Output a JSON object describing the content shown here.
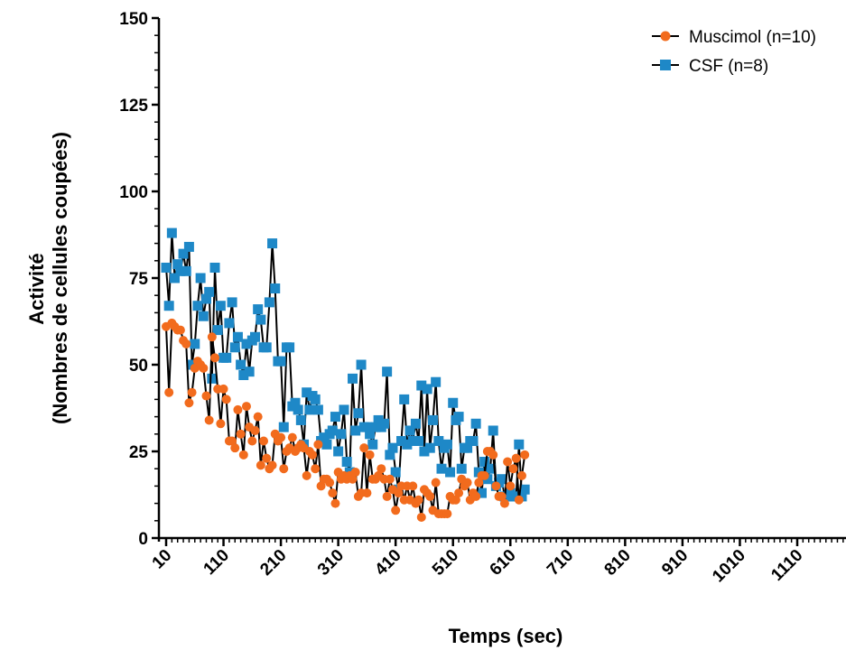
{
  "chart_data": {
    "type": "line",
    "xlabel": "Temps (sec)",
    "ylabel_line1": "Activité",
    "ylabel_line2": "(Nombres de cellules coupées)",
    "xlim": [
      5,
      1195
    ],
    "ylim": [
      0,
      150
    ],
    "x_ticks": [
      "10",
      "110",
      "210",
      "310",
      "410",
      "510",
      "610",
      "710",
      "810",
      "910",
      "1010",
      "1110"
    ],
    "y_ticks": [
      "0",
      "25",
      "50",
      "75",
      "100",
      "125",
      "150"
    ],
    "grid": false,
    "legend_position": "top-right",
    "x_start": 10,
    "x_step": 5,
    "series": [
      {
        "name": "Muscimol (n=10)",
        "color": "#F26B1D",
        "marker": "circle",
        "values": [
          61,
          42,
          62,
          61,
          60,
          60,
          57,
          56,
          39,
          42,
          49,
          51,
          50,
          49,
          41,
          34,
          58,
          52,
          43,
          33,
          43,
          40,
          28,
          28,
          26,
          37,
          30,
          24,
          38,
          32,
          28,
          31,
          35,
          21,
          28,
          23,
          20,
          21,
          30,
          28,
          29,
          20,
          25,
          26,
          29,
          25,
          26,
          27,
          26,
          18,
          25,
          24,
          20,
          27,
          15,
          17,
          17,
          16,
          13,
          10,
          19,
          17,
          18,
          17,
          18,
          17,
          19,
          12,
          13,
          26,
          13,
          24,
          17,
          17,
          18,
          20,
          17,
          12,
          17,
          14,
          8,
          13,
          15,
          11,
          15,
          11,
          15,
          10,
          11,
          6,
          14,
          13,
          12,
          8,
          16,
          7,
          7,
          7,
          7,
          12,
          11,
          11,
          13,
          17,
          15,
          16,
          11,
          13,
          12,
          16,
          18,
          18,
          25,
          25,
          24,
          15,
          12,
          12,
          10,
          22,
          15,
          20,
          23,
          11,
          18,
          24
        ]
      },
      {
        "name": "CSF (n=8)",
        "color": "#1E88C7",
        "marker": "square",
        "values": [
          78,
          67,
          88,
          75,
          79,
          77,
          82,
          77,
          84,
          50,
          56,
          67,
          75,
          64,
          69,
          71,
          46,
          78,
          60,
          67,
          52,
          52,
          62,
          68,
          55,
          58,
          50,
          47,
          56,
          48,
          57,
          58,
          66,
          63,
          55,
          55,
          68,
          85,
          72,
          51,
          51,
          32,
          55,
          55,
          38,
          39,
          37,
          34,
          27,
          42,
          37,
          41,
          40,
          37,
          28,
          29,
          27,
          30,
          31,
          35,
          25,
          30,
          37,
          22,
          19,
          46,
          31,
          36,
          50,
          32,
          32,
          30,
          27,
          32,
          34,
          32,
          33,
          48,
          24,
          26,
          19,
          14,
          28,
          40,
          27,
          31,
          28,
          33,
          28,
          44,
          25,
          43,
          26,
          34,
          45,
          28,
          20,
          26,
          27,
          19,
          39,
          34,
          35,
          20,
          26,
          26,
          28,
          28,
          33,
          19,
          13,
          22,
          17,
          20,
          31,
          15,
          16,
          17,
          12,
          12,
          13,
          12,
          12,
          27,
          12,
          14
        ]
      }
    ]
  }
}
